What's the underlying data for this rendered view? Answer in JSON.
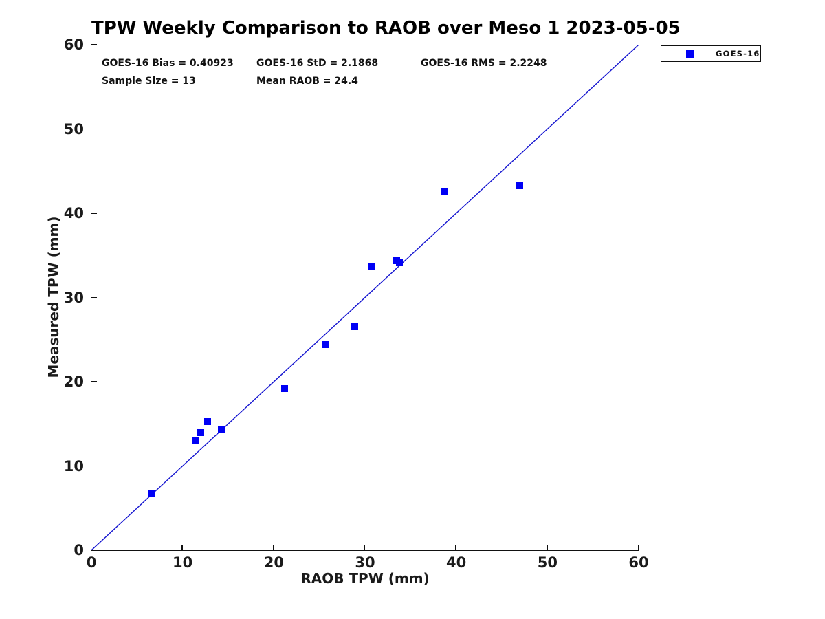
{
  "title": "TPW Weekly Comparison to RAOB over Meso 1 2023-05-05",
  "stats": {
    "bias": "GOES-16 Bias = 0.40923",
    "std": "GOES-16 StD = 2.1868",
    "rms": "GOES-16 RMS = 2.2248",
    "sample_size": "Sample Size = 13",
    "mean_raob": "Mean RAOB = 24.4"
  },
  "legend": {
    "label": "GOES-16"
  },
  "colors": {
    "marker": "#0000f5",
    "ref_line": "#1515d0",
    "axis": "#111111",
    "text": "#1a1a1a"
  },
  "chart_data": {
    "type": "scatter",
    "title": "TPW Weekly Comparison to RAOB over Meso 1 2023-05-05",
    "xlabel": "RAOB TPW (mm)",
    "ylabel": "Measured TPW (mm)",
    "xlim": [
      0,
      60
    ],
    "ylim": [
      0,
      60
    ],
    "xticks": [
      0,
      10,
      20,
      30,
      40,
      50,
      60
    ],
    "yticks": [
      0,
      10,
      20,
      30,
      40,
      50,
      60
    ],
    "grid": false,
    "legend_position": "outside-top-right",
    "series": [
      {
        "name": "GOES-16",
        "marker": "square",
        "color": "#0000f5",
        "points": [
          [
            6.7,
            6.8
          ],
          [
            11.5,
            13.1
          ],
          [
            12.0,
            14.0
          ],
          [
            12.8,
            15.3
          ],
          [
            14.3,
            14.4
          ],
          [
            21.2,
            19.2
          ],
          [
            25.7,
            24.4
          ],
          [
            28.9,
            26.5
          ],
          [
            30.8,
            33.6
          ],
          [
            33.5,
            34.4
          ],
          [
            33.8,
            34.1
          ],
          [
            38.8,
            42.6
          ],
          [
            47.0,
            43.3
          ]
        ]
      }
    ],
    "reference_line": {
      "from": [
        0,
        0
      ],
      "to": [
        60,
        60
      ],
      "style": "solid"
    },
    "annotations": [
      "GOES-16 Bias = 0.40923",
      "GOES-16 StD = 2.1868",
      "GOES-16 RMS = 2.2248",
      "Sample Size = 13",
      "Mean RAOB = 24.4"
    ]
  }
}
